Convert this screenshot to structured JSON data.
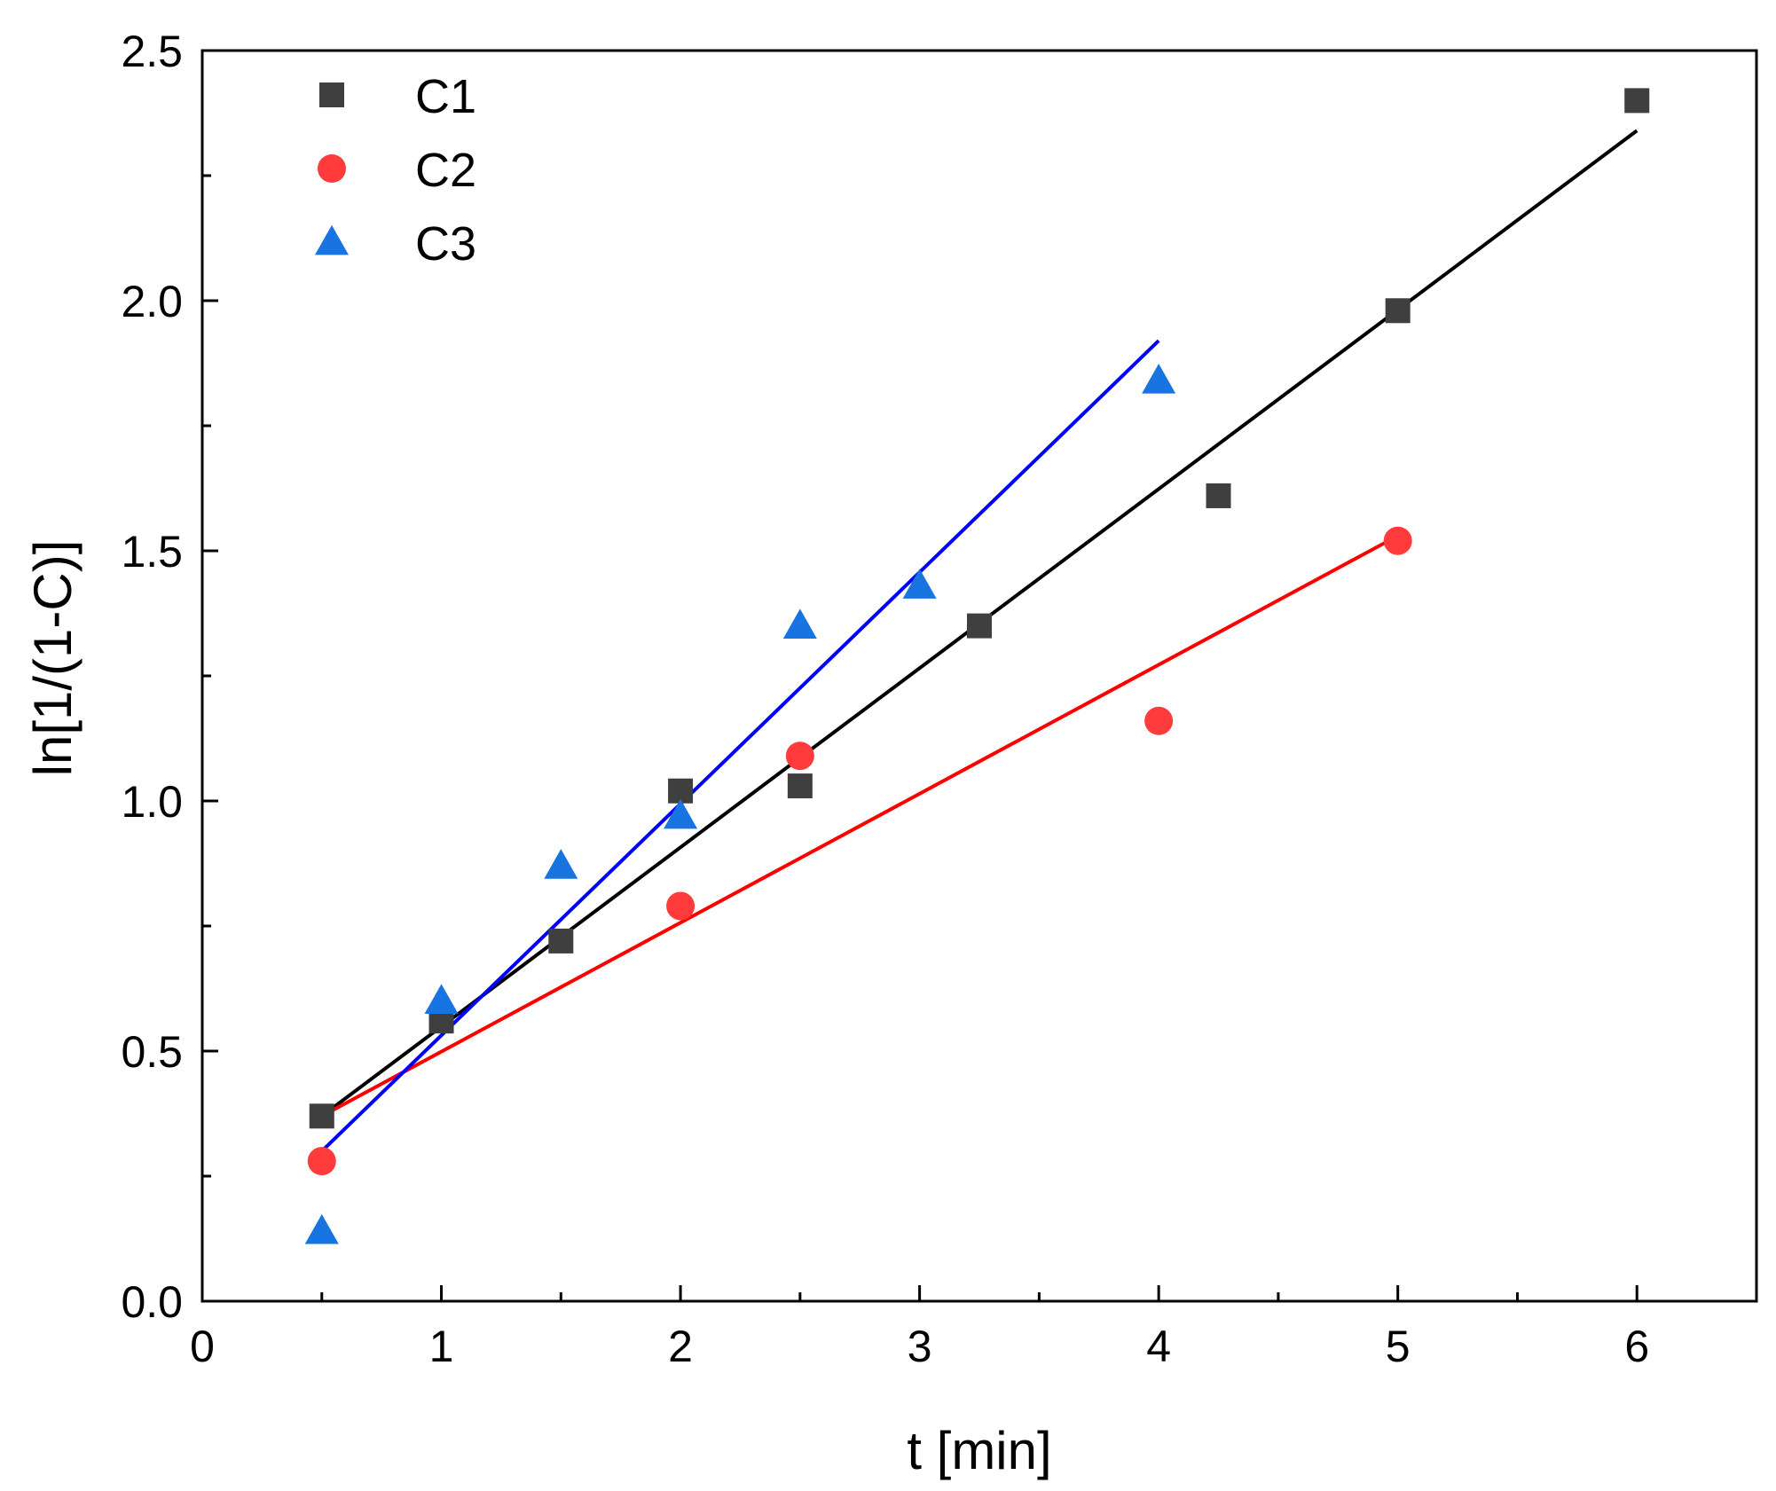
{
  "chart_data": {
    "type": "scatter",
    "title": "",
    "xlabel": "t [min]",
    "ylabel": "ln[1/(1-C)]",
    "xlim": [
      0,
      6.5
    ],
    "ylim": [
      0,
      2.5
    ],
    "x_ticks": [
      0,
      1,
      2,
      3,
      4,
      5,
      6
    ],
    "x_tick_labels": [
      "0",
      "1",
      "2",
      "3",
      "4",
      "5",
      "6"
    ],
    "x_minor_ticks": [
      0.5,
      1.5,
      2.5,
      3.5,
      4.5,
      5.5
    ],
    "y_ticks": [
      0,
      0.5,
      1.0,
      1.5,
      2.0,
      2.5
    ],
    "y_tick_labels": [
      "0.0",
      "0.5",
      "1.0",
      "1.5",
      "2.0",
      "2.5"
    ],
    "y_minor_ticks": [
      0.25,
      0.75,
      1.25,
      1.75,
      2.25
    ],
    "grid": false,
    "legend_position": "top-left",
    "series": [
      {
        "name": "C1",
        "marker": "square",
        "color": "#3f3f3f",
        "line_color": "#000000",
        "x": [
          0.5,
          1.0,
          1.5,
          2.0,
          2.5,
          3.25,
          4.25,
          5.0,
          6.0
        ],
        "y": [
          0.37,
          0.56,
          0.72,
          1.02,
          1.03,
          1.35,
          1.61,
          1.98,
          2.4
        ],
        "fit": {
          "x0": 0.5,
          "y0": 0.37,
          "x1": 6.0,
          "y1": 2.34
        }
      },
      {
        "name": "C2",
        "marker": "circle",
        "color": "#ff3b3b",
        "line_color": "#ff0000",
        "x": [
          0.5,
          2.0,
          2.5,
          4.0,
          5.0
        ],
        "y": [
          0.28,
          0.79,
          1.09,
          1.16,
          1.52
        ],
        "fit": {
          "x0": 0.5,
          "y0": 0.37,
          "x1": 5.0,
          "y1": 1.53
        }
      },
      {
        "name": "C3",
        "marker": "triangle",
        "color": "#1874e0",
        "line_color": "#0000ff",
        "x": [
          0.5,
          1.0,
          1.5,
          2.0,
          2.5,
          3.0,
          4.0
        ],
        "y": [
          0.14,
          0.6,
          0.87,
          0.97,
          1.35,
          1.43,
          1.84
        ],
        "fit": {
          "x0": 0.5,
          "y0": 0.3,
          "x1": 4.0,
          "y1": 1.92
        }
      }
    ]
  }
}
